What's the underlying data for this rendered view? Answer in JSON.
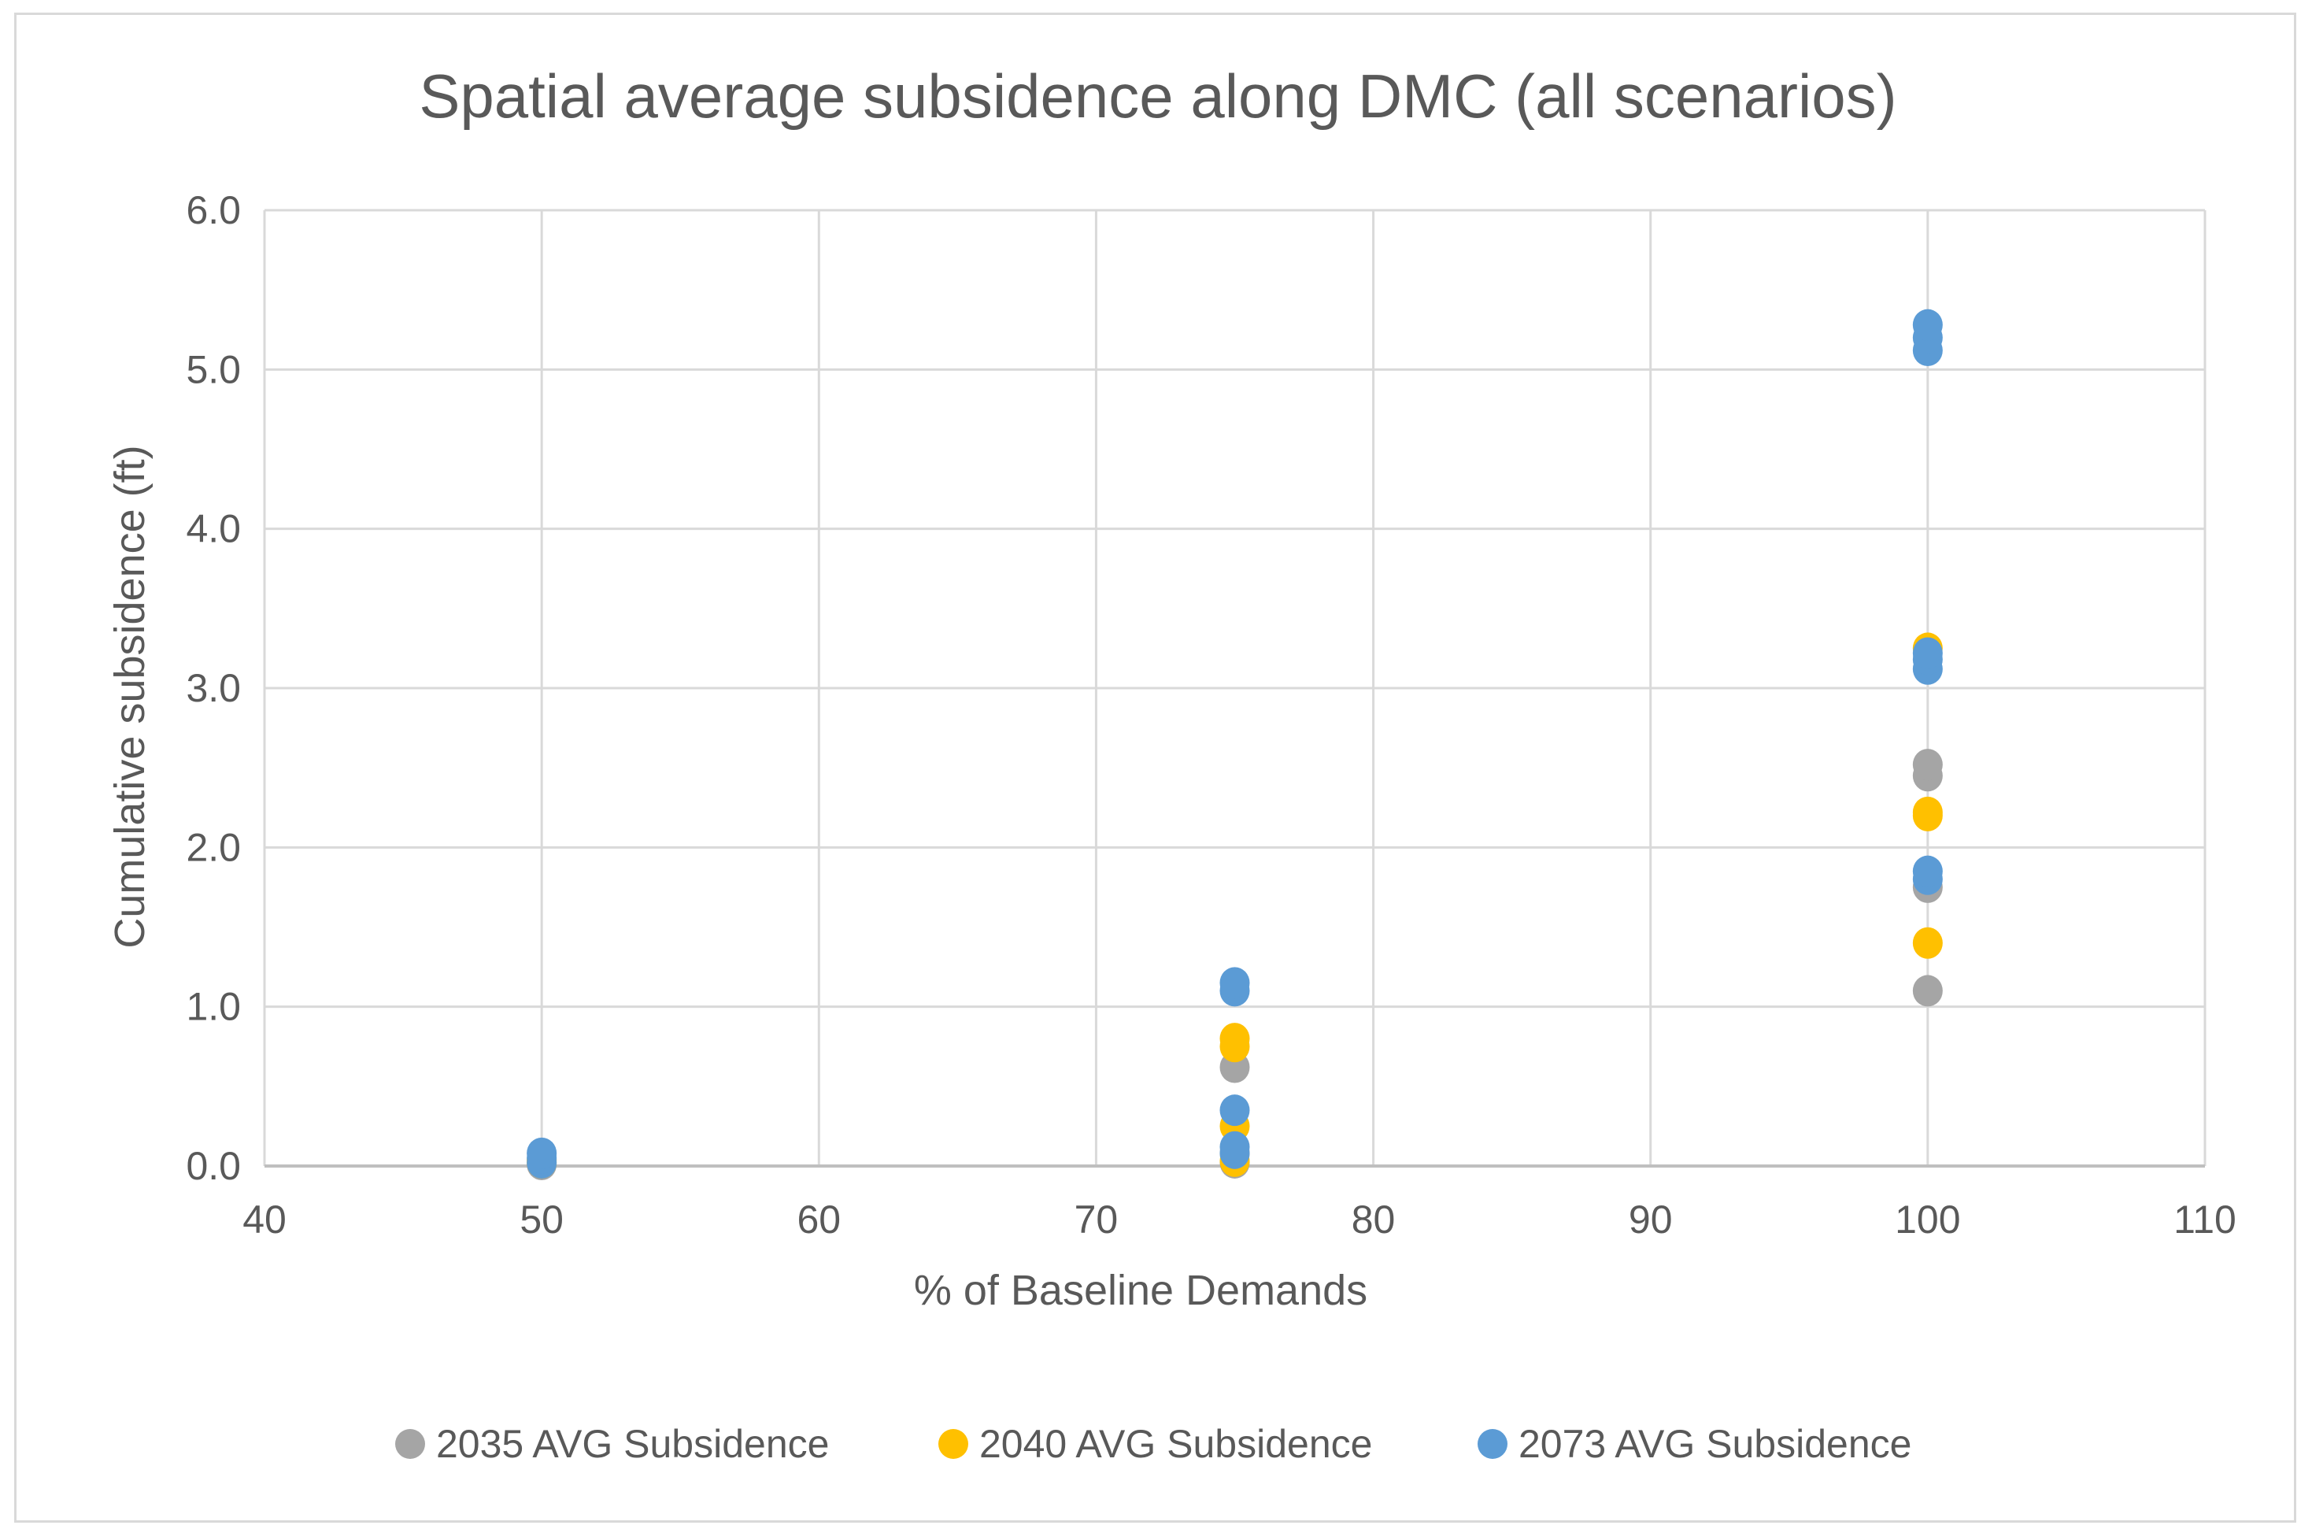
{
  "chart_data": {
    "type": "scatter",
    "title": "Spatial average subsidence along DMC (all scenarios)",
    "xlabel": "% of Baseline Demands",
    "ylabel": "Cumulative subsidence (ft)",
    "xlim": [
      40,
      110
    ],
    "ylim": [
      0,
      6
    ],
    "x_ticks": [
      "40",
      "50",
      "60",
      "70",
      "80",
      "90",
      "100",
      "110"
    ],
    "y_ticks": [
      "0.0",
      "1.0",
      "2.0",
      "3.0",
      "4.0",
      "5.0",
      "6.0"
    ],
    "grid": true,
    "legend_position": "bottom",
    "series": [
      {
        "name": "2035 AVG Subsidence",
        "color": "#a5a5a5",
        "points": [
          [
            50,
            0.01
          ],
          [
            50,
            0.03
          ],
          [
            75,
            0.02
          ],
          [
            75,
            0.08
          ],
          [
            75,
            0.62
          ],
          [
            100,
            1.1
          ],
          [
            100,
            1.75
          ],
          [
            100,
            2.45
          ],
          [
            100,
            2.52
          ]
        ]
      },
      {
        "name": "2040 AVG Subsidence",
        "color": "#ffc000",
        "points": [
          [
            50,
            0.02
          ],
          [
            50,
            0.04
          ],
          [
            75,
            0.03
          ],
          [
            75,
            0.25
          ],
          [
            75,
            0.75
          ],
          [
            75,
            0.8
          ],
          [
            100,
            1.4
          ],
          [
            100,
            2.2
          ],
          [
            100,
            2.22
          ],
          [
            100,
            3.25
          ]
        ]
      },
      {
        "name": "2073 AVG Subsidence",
        "color": "#5b9bd5",
        "points": [
          [
            50,
            0.02
          ],
          [
            50,
            0.05
          ],
          [
            50,
            0.08
          ],
          [
            75,
            0.08
          ],
          [
            75,
            0.12
          ],
          [
            75,
            0.35
          ],
          [
            75,
            1.1
          ],
          [
            75,
            1.15
          ],
          [
            100,
            1.8
          ],
          [
            100,
            1.85
          ],
          [
            100,
            3.12
          ],
          [
            100,
            3.18
          ],
          [
            100,
            3.22
          ],
          [
            100,
            5.12
          ],
          [
            100,
            5.2
          ],
          [
            100,
            5.28
          ]
        ]
      }
    ]
  }
}
